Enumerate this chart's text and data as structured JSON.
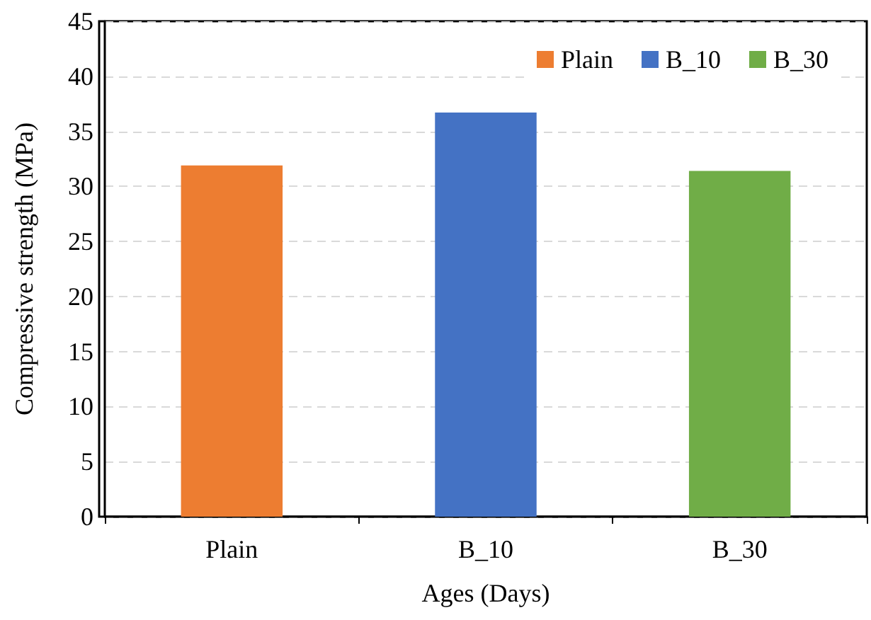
{
  "chart_data": {
    "type": "bar",
    "xlabel": "Ages (Days)",
    "ylabel": "Compressive strength (MPa)",
    "categories": [
      "Plain",
      "B_10",
      "B_30"
    ],
    "series": [
      {
        "name": "Plain",
        "color": "#ed7d31",
        "values": [
          31.9,
          null,
          null
        ]
      },
      {
        "name": "B_10",
        "color": "#4472c4",
        "values": [
          null,
          36.7,
          null
        ]
      },
      {
        "name": "B_30",
        "color": "#70ad47",
        "values": [
          null,
          null,
          31.4
        ]
      }
    ],
    "ylim": [
      0,
      45
    ],
    "yticks": [
      0,
      5,
      10,
      15,
      20,
      25,
      30,
      35,
      40,
      45
    ],
    "grid": "y",
    "legend": "top right"
  }
}
